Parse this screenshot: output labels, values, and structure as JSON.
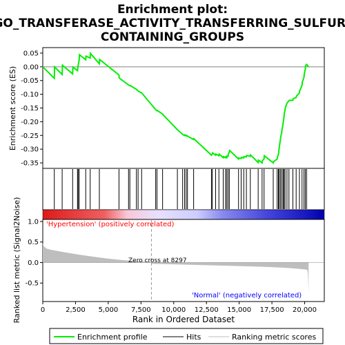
{
  "title_line1": "Enrichment plot:",
  "title_line2": "GO_TRANSFERASE_ACTIVITY_TRANSFERRING_SULFUR_",
  "title_line3": "CONTAINING_GROUPS",
  "colors": {
    "es_line": "#00ee00",
    "hits": "#000000",
    "ranking": "#bebebe",
    "positive_label": "#ff0000",
    "negative_label": "#0000ff"
  },
  "chart_data": {
    "type": "line",
    "xlabel": "Rank in Ordered Dataset",
    "top_ylabel": "Enrichment score (ES)",
    "bottom_ylabel": "Ranked list metric (Signal2Noise)",
    "xlim": [
      0,
      21500
    ],
    "x_ticks": [
      0,
      2500,
      5000,
      7500,
      10000,
      12500,
      15000,
      17500,
      20000
    ],
    "x_tick_labels": [
      "0",
      "2,500",
      "5,000",
      "7,500",
      "10,000",
      "12,500",
      "15,000",
      "17,500",
      "20,000"
    ],
    "es_ylim": [
      -0.37,
      0.07
    ],
    "es_ticks": [
      0.05,
      0.0,
      -0.05,
      -0.1,
      -0.15,
      -0.2,
      -0.25,
      -0.3,
      -0.35
    ],
    "es_tick_labels": [
      "0.05",
      "0.00",
      "-0.05",
      "-0.10",
      "-0.15",
      "-0.20",
      "-0.25",
      "-0.30",
      "-0.35"
    ],
    "metric_ylim": [
      -0.95,
      1.05
    ],
    "metric_ticks": [
      1.0,
      0.5,
      0.0,
      -0.5
    ],
    "metric_tick_labels": [
      "1.0",
      "0.5",
      "0.0",
      "-0.5"
    ],
    "zero_cross": 8297,
    "zero_cross_label": "Zero cross at 8297",
    "positive_label": "'Hypertension' (positively correlated)",
    "negative_label": "'Normal' (negatively correlated)",
    "n_genes": 20300,
    "hits": [
      880,
      1480,
      2280,
      2650,
      2700,
      2780,
      3280,
      3620,
      4320,
      5820,
      6550,
      6650,
      7150,
      7280,
      7550,
      8620,
      8720,
      9150,
      10280,
      10680,
      10830,
      10950,
      11050,
      11520,
      12880,
      12950,
      13200,
      13450,
      13780,
      13950,
      14050,
      14150,
      14250,
      14950,
      15150,
      15350,
      15550,
      15850,
      16450,
      16750,
      16900,
      17600,
      17900,
      18000,
      18050,
      18150,
      18250,
      18350,
      18420,
      18500,
      18650,
      18800,
      19100,
      19350,
      19600,
      19800,
      19950,
      20050,
      20150
    ],
    "series": [
      {
        "name": "Enrichment profile",
        "x": [
          0,
          880,
          900,
          1480,
          1500,
          2280,
          2300,
          2650,
          2700,
          2780,
          2800,
          3280,
          3300,
          3620,
          3640,
          4320,
          4340,
          5820,
          5840,
          6550,
          6570,
          6650,
          6670,
          7150,
          7170,
          7280,
          7300,
          7550,
          7570,
          8620,
          8640,
          8720,
          8740,
          9150,
          9170,
          10280,
          10300,
          10680,
          10700,
          10830,
          10850,
          10950,
          10970,
          11050,
          11070,
          11520,
          11540,
          12880,
          12900,
          12950,
          12970,
          13200,
          13220,
          13450,
          13470,
          13780,
          13800,
          13950,
          13970,
          14050,
          14070,
          14150,
          14170,
          14250,
          14270,
          14950,
          14970,
          15150,
          15170,
          15350,
          15370,
          15550,
          15570,
          15850,
          15870,
          16450,
          16470,
          16750,
          16770,
          16900,
          16920,
          17600,
          17620,
          17900,
          17920,
          18000,
          18020,
          18050,
          18070,
          18150,
          18170,
          18250,
          18270,
          18350,
          18370,
          18420,
          18440,
          18500,
          18520,
          18650,
          18670,
          18800,
          18820,
          19100,
          19120,
          19350,
          19370,
          19600,
          19620,
          19800,
          19820,
          19950,
          19970,
          20050,
          20070,
          20150,
          20170,
          20300
        ],
        "y": [
          0.0,
          -0.042,
          0.0,
          -0.028,
          0.006,
          -0.026,
          -0.001,
          -0.014,
          0.005,
          0.025,
          0.044,
          0.026,
          0.039,
          0.032,
          0.049,
          0.011,
          0.027,
          -0.03,
          -0.041,
          -0.066,
          -0.067,
          -0.069,
          -0.068,
          -0.082,
          -0.083,
          -0.088,
          -0.089,
          -0.095,
          -0.096,
          -0.156,
          -0.157,
          -0.16,
          -0.159,
          -0.172,
          -0.174,
          -0.229,
          -0.23,
          -0.246,
          -0.247,
          -0.25,
          -0.248,
          -0.252,
          -0.25,
          -0.252,
          -0.253,
          -0.265,
          -0.262,
          -0.322,
          -0.32,
          -0.318,
          -0.314,
          -0.322,
          -0.318,
          -0.324,
          -0.318,
          -0.331,
          -0.327,
          -0.331,
          -0.328,
          -0.331,
          -0.325,
          -0.326,
          -0.318,
          -0.31,
          -0.305,
          -0.336,
          -0.332,
          -0.334,
          -0.33,
          -0.332,
          -0.327,
          -0.328,
          -0.323,
          -0.326,
          -0.321,
          -0.349,
          -0.34,
          -0.35,
          -0.343,
          -0.335,
          -0.324,
          -0.35,
          -0.346,
          -0.336,
          -0.33,
          -0.318,
          -0.311,
          -0.298,
          -0.29,
          -0.265,
          -0.256,
          -0.238,
          -0.229,
          -0.208,
          -0.2,
          -0.185,
          -0.172,
          -0.158,
          -0.15,
          -0.132,
          -0.131,
          -0.124,
          -0.122,
          -0.122,
          -0.116,
          -0.112,
          -0.107,
          -0.095,
          -0.088,
          -0.067,
          -0.056,
          -0.038,
          -0.026,
          -0.008,
          0.004,
          0.009,
          0.008,
          0.0
        ]
      }
    ],
    "legend": {
      "placement": "bottom",
      "entries": [
        "Enrichment profile",
        "Hits",
        "Ranking metric scores"
      ]
    }
  }
}
